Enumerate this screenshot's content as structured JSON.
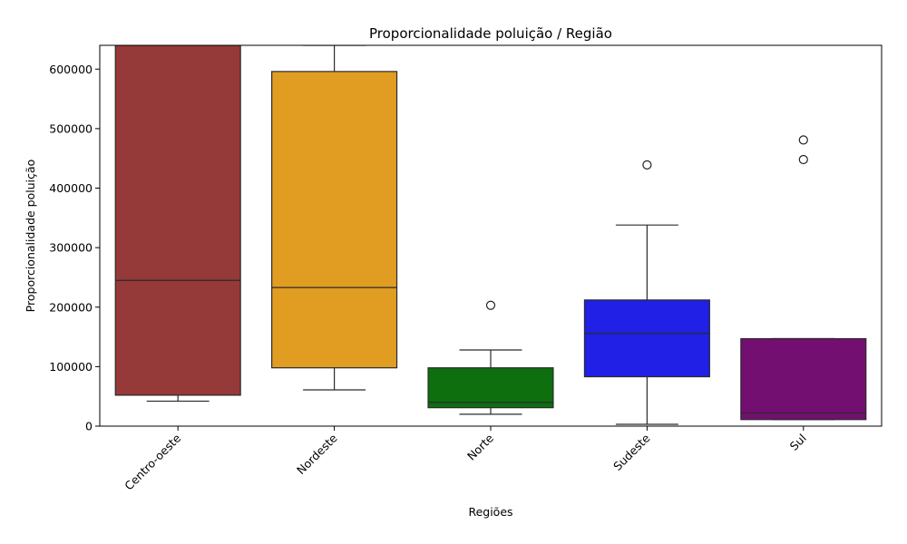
{
  "chart_data": {
    "type": "box",
    "title": "Proporcionalidade poluição / Região",
    "xlabel": "Regiões",
    "ylabel": "Proporcionalidade poluição",
    "ylim": [
      0,
      640000
    ],
    "yticks": [
      0,
      100000,
      200000,
      300000,
      400000,
      500000,
      600000
    ],
    "ytick_labels": [
      "0",
      "100000",
      "200000",
      "300000",
      "400000",
      "500000",
      "600000"
    ],
    "grid": false,
    "series": [
      {
        "category": "Centro-oeste",
        "color": "#963939",
        "whisker_low": 42000,
        "q1": 52000,
        "median": 245000,
        "q3": 640000,
        "whisker_high": 640000,
        "outliers": []
      },
      {
        "category": "Nordeste",
        "color": "#e09d22",
        "whisker_low": 61000,
        "q1": 98000,
        "median": 233000,
        "q3": 596000,
        "whisker_high": 640000,
        "outliers": []
      },
      {
        "category": "Norte",
        "color": "#0d6f0d",
        "whisker_low": 20000,
        "q1": 31000,
        "median": 40000,
        "q3": 98000,
        "whisker_high": 128000,
        "outliers": [
          203000
        ]
      },
      {
        "category": "Sudeste",
        "color": "#2020e6",
        "whisker_low": 3000,
        "q1": 83000,
        "median": 156000,
        "q3": 212000,
        "whisker_high": 338000,
        "outliers": [
          439000
        ]
      },
      {
        "category": "Sul",
        "color": "#720f70",
        "whisker_low": 11000,
        "q1": 11000,
        "median": 22000,
        "q3": 147000,
        "whisker_high": 147000,
        "outliers": [
          448000,
          481000
        ]
      }
    ]
  }
}
